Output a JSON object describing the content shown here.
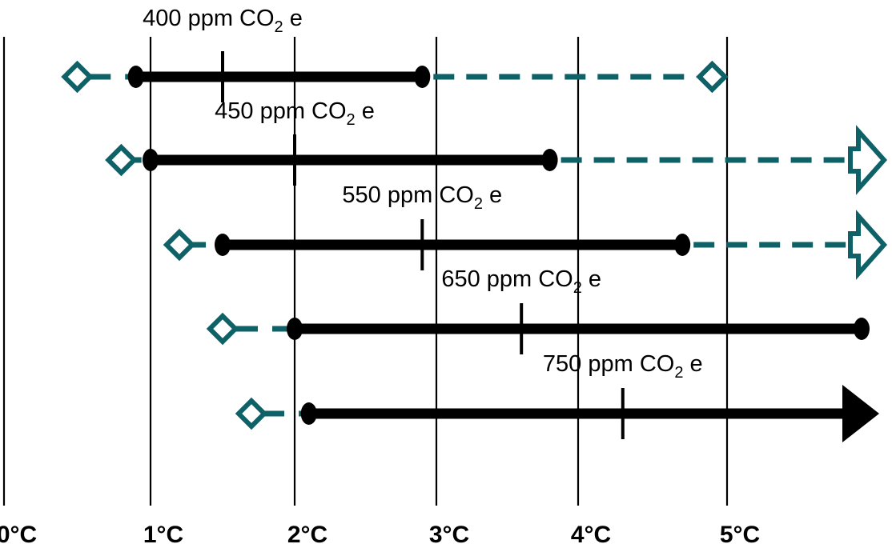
{
  "colors": {
    "teal": "#0e6166",
    "black": "#000000",
    "background": "#ffffff"
  },
  "chart_data": {
    "type": "range",
    "xlabel": "",
    "x_tick_labels": [
      "0°C",
      "1°C",
      "2°C",
      "3°C",
      "4°C",
      "5°C"
    ],
    "x_ticks": [
      0,
      1,
      2,
      3,
      4,
      5
    ],
    "grid": "vertical",
    "series": [
      {
        "label": {
          "pre": "400 ppm CO",
          "sub": "2",
          "post": " e"
        },
        "min": 0.5,
        "likely_low": 0.9,
        "median": 1.5,
        "likely_high": 2.9,
        "max": 4.9,
        "max_open": false,
        "likely_high_open": false
      },
      {
        "label": {
          "pre": "450 ppm CO",
          "sub": "2",
          "post": " e"
        },
        "min": 0.8,
        "likely_low": 1.0,
        "median": 2.0,
        "likely_high": 3.8,
        "max": 6.0,
        "max_open": true,
        "likely_high_open": false
      },
      {
        "label": {
          "pre": "550 ppm CO",
          "sub": "2",
          "post": " e"
        },
        "min": 1.2,
        "likely_low": 1.5,
        "median": 2.9,
        "likely_high": 4.7,
        "max": 6.0,
        "max_open": true,
        "likely_high_open": false
      },
      {
        "label": {
          "pre": "650 ppm CO",
          "sub": "2",
          "post": " e"
        },
        "min": 1.5,
        "likely_low": 2.0,
        "median": 3.6,
        "likely_high": 6.0,
        "max": null,
        "max_open": false,
        "likely_high_open": false
      },
      {
        "label": {
          "pre": "750 ppm CO",
          "sub": "2",
          "post": " e"
        },
        "min": 1.7,
        "likely_low": 2.1,
        "median": 4.3,
        "likely_high": 6.0,
        "max": null,
        "max_open": false,
        "likely_high_open": true
      }
    ]
  }
}
